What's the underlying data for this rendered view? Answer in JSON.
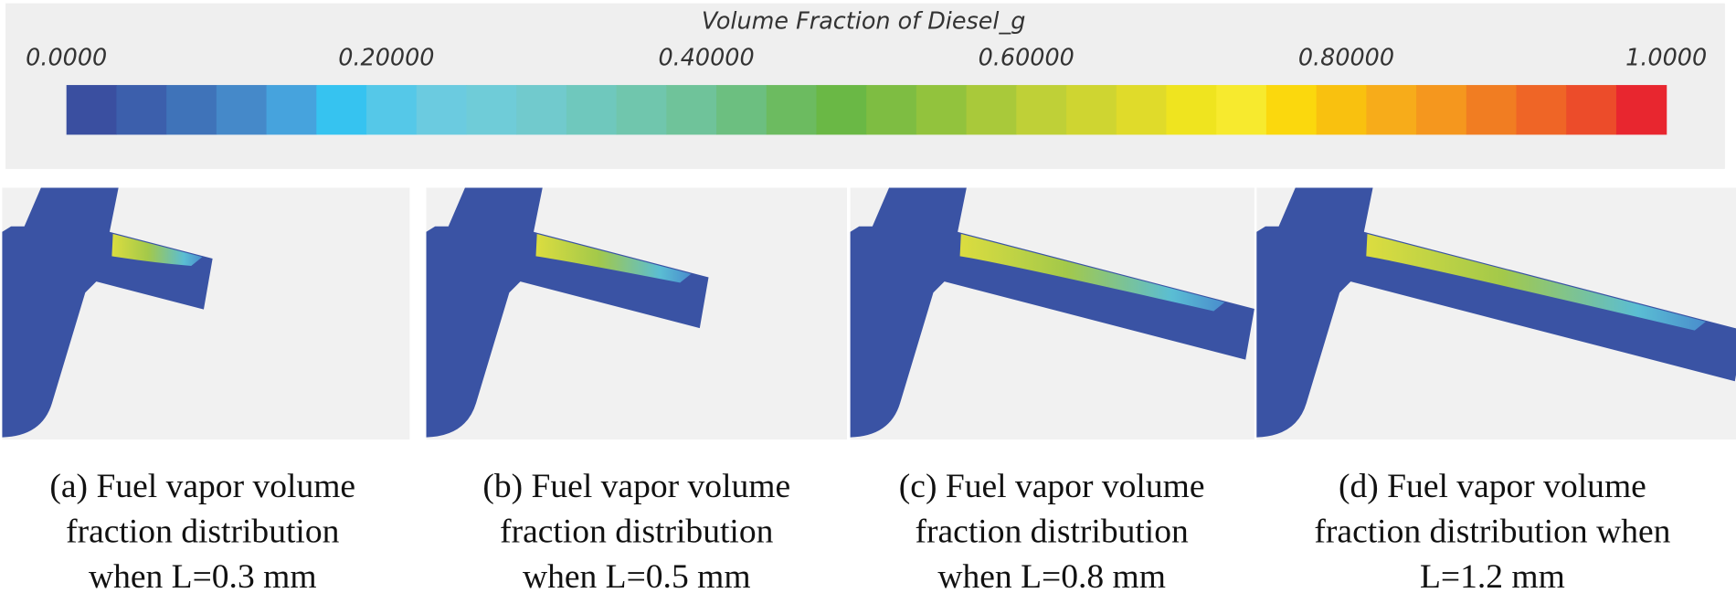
{
  "colorbar": {
    "title": "Volume Fraction of Diesel_g",
    "ticks": [
      "0.0000",
      "0.20000",
      "0.40000",
      "0.60000",
      "0.80000",
      "1.0000"
    ]
  },
  "panels": [
    {
      "caption": [
        "(a) Fuel vapor volume",
        "fraction distribution",
        "when L=0.3 mm"
      ]
    },
    {
      "caption": [
        "(b) Fuel vapor volume",
        "fraction distribution",
        "when L=0.5 mm"
      ]
    },
    {
      "caption": [
        "(c) Fuel vapor volume",
        "fraction distribution",
        "when L=0.8 mm"
      ]
    },
    {
      "caption": [
        "(d) Fuel vapor volume",
        "fraction distribution when",
        "L=1.2 mm"
      ]
    }
  ]
}
